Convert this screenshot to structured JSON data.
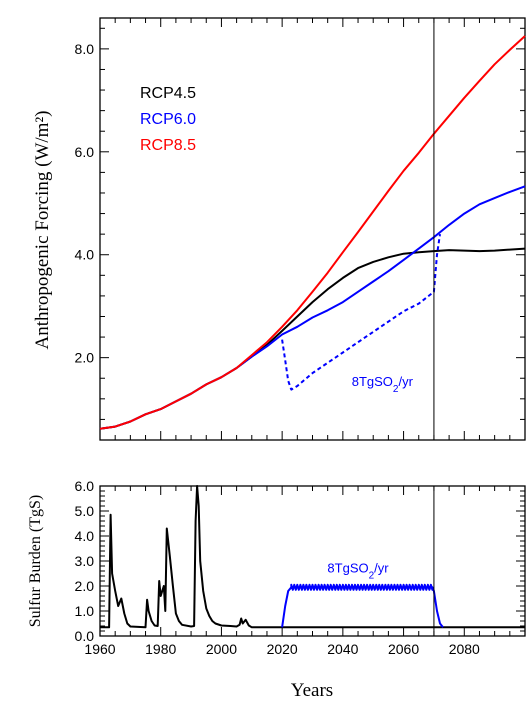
{
  "chart_data": [
    {
      "type": "line",
      "title": "",
      "xlabel": "",
      "ylabel": "Anthropogenic Forcing (W/m²)",
      "xlim": [
        1960,
        2100
      ],
      "ylim": [
        0.4,
        8.6
      ],
      "yticks": [
        2.0,
        4.0,
        6.0,
        8.0
      ],
      "ytick_labels": [
        "2.0",
        "4.0",
        "6.0",
        "8.0"
      ],
      "grid": false,
      "legend_position": "top-left",
      "vertical_marker_x": 2070,
      "series": [
        {
          "name": "RCP4.5",
          "color": "#000000",
          "style": "solid",
          "points": [
            [
              1960,
              0.62
            ],
            [
              1965,
              0.66
            ],
            [
              1970,
              0.76
            ],
            [
              1975,
              0.9
            ],
            [
              1980,
              1.0
            ],
            [
              1985,
              1.15
            ],
            [
              1990,
              1.3
            ],
            [
              1995,
              1.48
            ],
            [
              2000,
              1.62
            ],
            [
              2005,
              1.8
            ],
            [
              2010,
              2.02
            ],
            [
              2015,
              2.25
            ],
            [
              2020,
              2.52
            ],
            [
              2025,
              2.8
            ],
            [
              2030,
              3.08
            ],
            [
              2035,
              3.33
            ],
            [
              2040,
              3.55
            ],
            [
              2045,
              3.74
            ],
            [
              2050,
              3.86
            ],
            [
              2055,
              3.95
            ],
            [
              2060,
              4.02
            ],
            [
              2065,
              4.05
            ],
            [
              2070,
              4.07
            ],
            [
              2075,
              4.09
            ],
            [
              2080,
              4.08
            ],
            [
              2085,
              4.07
            ],
            [
              2090,
              4.08
            ],
            [
              2095,
              4.1
            ],
            [
              2100,
              4.12
            ]
          ]
        },
        {
          "name": "RCP6.0",
          "color": "#0000ff",
          "style": "solid",
          "points": [
            [
              1960,
              0.62
            ],
            [
              1965,
              0.66
            ],
            [
              1970,
              0.76
            ],
            [
              1975,
              0.9
            ],
            [
              1980,
              1.0
            ],
            [
              1985,
              1.15
            ],
            [
              1990,
              1.3
            ],
            [
              1995,
              1.48
            ],
            [
              2000,
              1.62
            ],
            [
              2005,
              1.8
            ],
            [
              2010,
              2.02
            ],
            [
              2015,
              2.22
            ],
            [
              2020,
              2.45
            ],
            [
              2025,
              2.6
            ],
            [
              2030,
              2.78
            ],
            [
              2035,
              2.92
            ],
            [
              2040,
              3.08
            ],
            [
              2045,
              3.28
            ],
            [
              2050,
              3.48
            ],
            [
              2055,
              3.68
            ],
            [
              2060,
              3.9
            ],
            [
              2065,
              4.12
            ],
            [
              2070,
              4.34
            ],
            [
              2075,
              4.58
            ],
            [
              2080,
              4.8
            ],
            [
              2085,
              4.98
            ],
            [
              2090,
              5.1
            ],
            [
              2095,
              5.22
            ],
            [
              2100,
              5.33
            ]
          ]
        },
        {
          "name": "RCP8.5",
          "color": "#ff0000",
          "style": "solid",
          "points": [
            [
              1960,
              0.62
            ],
            [
              1965,
              0.66
            ],
            [
              1970,
              0.76
            ],
            [
              1975,
              0.9
            ],
            [
              1980,
              1.0
            ],
            [
              1985,
              1.15
            ],
            [
              1990,
              1.3
            ],
            [
              1995,
              1.48
            ],
            [
              2000,
              1.62
            ],
            [
              2005,
              1.8
            ],
            [
              2010,
              2.05
            ],
            [
              2015,
              2.3
            ],
            [
              2020,
              2.6
            ],
            [
              2025,
              2.92
            ],
            [
              2030,
              3.28
            ],
            [
              2035,
              3.65
            ],
            [
              2040,
              4.05
            ],
            [
              2045,
              4.44
            ],
            [
              2050,
              4.84
            ],
            [
              2055,
              5.24
            ],
            [
              2060,
              5.63
            ],
            [
              2065,
              5.98
            ],
            [
              2070,
              6.35
            ],
            [
              2075,
              6.7
            ],
            [
              2080,
              7.05
            ],
            [
              2085,
              7.38
            ],
            [
              2090,
              7.7
            ],
            [
              2095,
              7.98
            ],
            [
              2100,
              8.25
            ]
          ]
        },
        {
          "name": "",
          "color": "#0000ff",
          "style": "dashed",
          "points": [
            [
              2020,
              2.35
            ],
            [
              2021,
              1.95
            ],
            [
              2022,
              1.55
            ],
            [
              2023,
              1.38
            ],
            [
              2025,
              1.45
            ],
            [
              2030,
              1.7
            ],
            [
              2035,
              1.9
            ],
            [
              2040,
              2.1
            ],
            [
              2045,
              2.3
            ],
            [
              2050,
              2.5
            ],
            [
              2055,
              2.7
            ],
            [
              2060,
              2.9
            ],
            [
              2065,
              3.05
            ],
            [
              2070,
              3.28
            ],
            [
              2071,
              4.0
            ],
            [
              2072,
              4.4
            ]
          ]
        }
      ],
      "annotation": {
        "text": "8TgSO",
        "sub": "2",
        "suffix": "/yr",
        "x": 2053,
        "y": 1.45,
        "color": "#0000ff"
      }
    },
    {
      "type": "line",
      "title": "",
      "xlabel": "Years",
      "ylabel": "Sulfur Burden (TgS)",
      "xlim": [
        1960,
        2100
      ],
      "ylim": [
        0.0,
        6.0
      ],
      "xticks": [
        1960,
        1980,
        2000,
        2020,
        2040,
        2060,
        2080
      ],
      "xtick_labels": [
        "1960",
        "1980",
        "2000",
        "2020",
        "2040",
        "2060",
        "2080"
      ],
      "yticks": [
        0.0,
        1.0,
        2.0,
        3.0,
        4.0,
        5.0,
        6.0
      ],
      "ytick_labels": [
        "0.0",
        "1.0",
        "2.0",
        "3.0",
        "4.0",
        "5.0",
        "6.0"
      ],
      "grid": false,
      "vertical_marker_x": 2070,
      "series": [
        {
          "name": "",
          "color": "#000000",
          "style": "solid",
          "points": [
            [
              1960,
              0.35
            ],
            [
              1963,
              0.35
            ],
            [
              1963.5,
              4.85
            ],
            [
              1964,
              2.5
            ],
            [
              1965,
              1.8
            ],
            [
              1966,
              1.2
            ],
            [
              1967,
              1.5
            ],
            [
              1968,
              0.9
            ],
            [
              1969,
              0.5
            ],
            [
              1970,
              0.38
            ],
            [
              1975,
              0.35
            ],
            [
              1975.5,
              1.45
            ],
            [
              1976,
              1.0
            ],
            [
              1977,
              0.6
            ],
            [
              1978,
              0.42
            ],
            [
              1979,
              0.4
            ],
            [
              1979.5,
              2.2
            ],
            [
              1980,
              1.6
            ],
            [
              1981,
              2.0
            ],
            [
              1981.5,
              1.0
            ],
            [
              1982,
              4.3
            ],
            [
              1983,
              3.2
            ],
            [
              1984,
              2.0
            ],
            [
              1985,
              0.9
            ],
            [
              1986,
              0.6
            ],
            [
              1987,
              0.45
            ],
            [
              1990,
              0.38
            ],
            [
              1991,
              0.4
            ],
            [
              1991.5,
              4.6
            ],
            [
              1992,
              6.0
            ],
            [
              1992.5,
              5.2
            ],
            [
              1993,
              3.0
            ],
            [
              1994,
              1.8
            ],
            [
              1995,
              1.1
            ],
            [
              1996,
              0.8
            ],
            [
              1997,
              0.6
            ],
            [
              1998,
              0.5
            ],
            [
              2000,
              0.42
            ],
            [
              2003,
              0.4
            ],
            [
              2005,
              0.38
            ],
            [
              2006,
              0.45
            ],
            [
              2006.5,
              0.7
            ],
            [
              2007,
              0.5
            ],
            [
              2008,
              0.65
            ],
            [
              2009,
              0.42
            ],
            [
              2010,
              0.35
            ],
            [
              2020,
              0.35
            ],
            [
              2040,
              0.35
            ],
            [
              2060,
              0.35
            ],
            [
              2070,
              0.35
            ],
            [
              2080,
              0.35
            ],
            [
              2100,
              0.35
            ]
          ]
        },
        {
          "name": "",
          "color": "#0000ff",
          "style": "solid",
          "points": [
            [
              2020,
              0.35
            ],
            [
              2021,
              1.2
            ],
            [
              2022,
              1.8
            ],
            [
              2023,
              1.95
            ],
            [
              2024,
              1.95
            ],
            [
              2040,
              1.95
            ],
            [
              2060,
              1.95
            ],
            [
              2069.5,
              1.95
            ],
            [
              2070,
              1.8
            ],
            [
              2071,
              1.0
            ],
            [
              2072,
              0.5
            ],
            [
              2073,
              0.35
            ]
          ],
          "oscillation": {
            "from": 2023,
            "to": 2069.5,
            "amplitude": 0.1,
            "period": 1
          }
        }
      ],
      "annotation": {
        "text": "8TgSO",
        "sub": "2",
        "suffix": "/yr",
        "x": 2045,
        "y": 2.55,
        "color": "#0000ff"
      }
    }
  ]
}
